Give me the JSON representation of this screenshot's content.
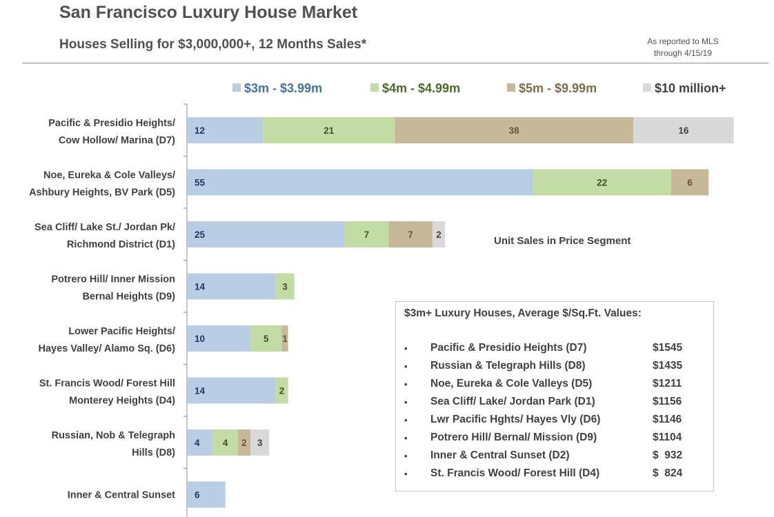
{
  "header": {
    "title": "San Francisco Luxury House Market",
    "subtitle": "Houses Selling for $3,000,000+, 12 Months Sales*",
    "source_line1": "As reported to MLS",
    "source_line2": "through 4/15/19"
  },
  "segment_note": "Unit Sales in Price Segment",
  "colors": {
    "s3m": "#b9cde5",
    "s4m": "#c3dba5",
    "s5m": "#c5b99a",
    "s10m": "#d9d9d9",
    "legend_s3m_text": "#4472a8",
    "legend_s4m_text": "#4e6b2c",
    "legend_s5m_text": "#7f6a4a",
    "legend_s10m_text": "#404040"
  },
  "chart_data": {
    "type": "bar",
    "orientation": "horizontal",
    "stacked": true,
    "legend_position": "top",
    "categories": [
      [
        "Pacific & Presidio Heights/",
        "Cow Hollow/ Marina (D7)"
      ],
      [
        "Noe, Eureka & Cole Valleys/",
        "Ashbury Heights, BV Park (D5)"
      ],
      [
        "Sea Cliff/ Lake St./ Jordan Pk/",
        "Richmond District (D1)"
      ],
      [
        "Potrero Hill/ Inner Mission",
        "Bernal Heights (D9)"
      ],
      [
        "Lower Pacific Heights/",
        "Hayes Valley/ Alamo Sq. (D6)"
      ],
      [
        "St. Francis Wood/ Forest Hill",
        "Monterey Heights (D4)"
      ],
      [
        "Russian, Nob & Telegraph",
        "Hills (D8)"
      ],
      [
        "Inner & Central Sunset"
      ]
    ],
    "series": [
      {
        "name": "$3m - $3.99m",
        "values": [
          12,
          55,
          25,
          14,
          10,
          14,
          4,
          6
        ]
      },
      {
        "name": "$4m - $4.99m",
        "values": [
          21,
          22,
          7,
          3,
          5,
          2,
          4,
          0
        ]
      },
      {
        "name": "$5m - $9.99m",
        "values": [
          38,
          6,
          7,
          0,
          1,
          0,
          2,
          0
        ]
      },
      {
        "name": "$10 million+",
        "values": [
          16,
          0,
          2,
          0,
          0,
          0,
          3,
          0
        ]
      }
    ]
  },
  "info_box": {
    "title": "$3m+ Luxury Houses, Average $/Sq.Ft. Values:",
    "bullet": "•",
    "items": [
      {
        "name": "Pacific & Presidio Heights (D7)",
        "value": "$1545"
      },
      {
        "name": "Russian & Telegraph Hills (D8)",
        "value": "$1435"
      },
      {
        "name": "Noe, Eureka & Cole Valleys (D5)",
        "value": "$1211"
      },
      {
        "name": "Sea Cliff/ Lake/ Jordan Park (D1)",
        "value": "$1156"
      },
      {
        "name": "Lwr Pacific Hghts/ Hayes Vly (D6)",
        "value": "$1146"
      },
      {
        "name": "Potrero Hill/ Bernal/ Mission (D9)",
        "value": "$1104"
      },
      {
        "name": "Inner & Central Sunset (D2)",
        "value": "$  932"
      },
      {
        "name": "St. Francis Wood/ Forest Hill (D4)",
        "value": "$  824"
      }
    ]
  }
}
